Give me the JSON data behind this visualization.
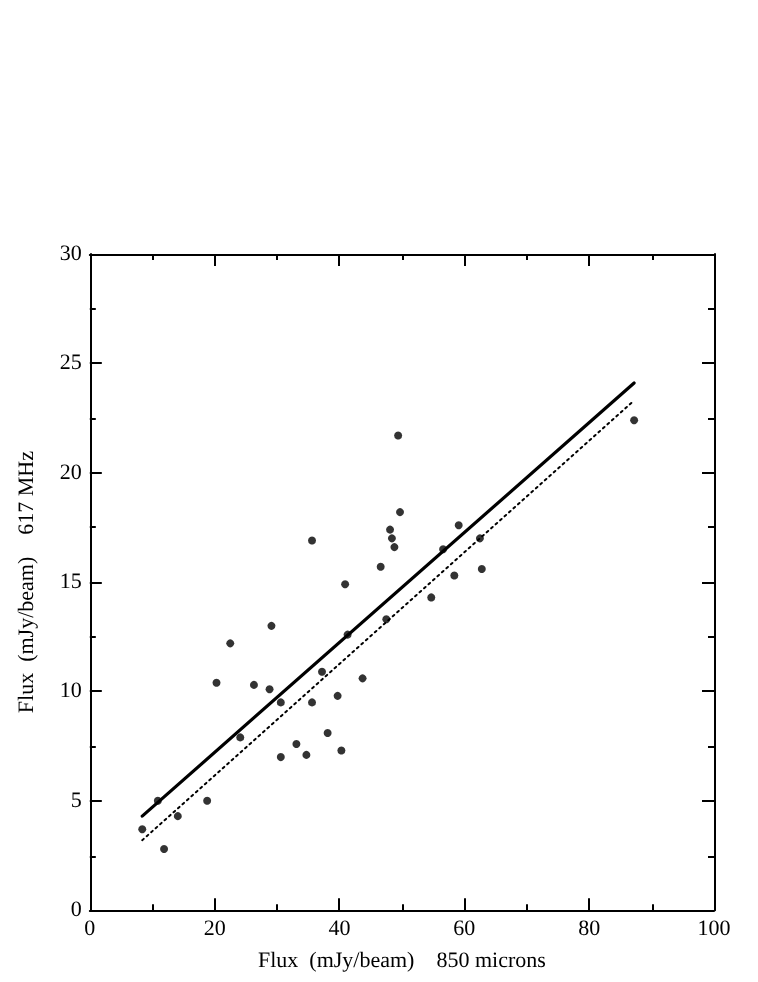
{
  "chart_data": {
    "type": "scatter",
    "xlabel": "Flux  (mJy/beam)    850 microns",
    "ylabel": "Flux  (mJy/beam)    617 MHz",
    "xlim": [
      0,
      100
    ],
    "xticks": [
      0,
      20,
      40,
      60,
      80,
      100
    ],
    "ylim": [
      0,
      30
    ],
    "yticks": [
      0,
      5,
      10,
      15,
      20,
      25,
      30
    ],
    "grid": false,
    "marker": "circle",
    "series": [
      {
        "color": "#000000",
        "x": [
          8.4,
          10.9,
          11.9,
          14.1,
          18.8,
          20.3,
          22.5,
          24.1,
          26.3,
          28.8,
          29.1,
          30.6,
          30.6,
          33.1,
          34.7,
          35.6,
          35.6,
          37.2,
          38.1,
          39.7,
          40.3,
          40.9,
          41.3,
          43.7,
          46.6,
          47.5,
          48.1,
          48.4,
          48.8,
          49.4,
          49.7,
          54.7,
          56.6,
          58.4,
          59.1,
          62.5,
          62.8,
          87.2
        ],
        "values": [
          3.7,
          5.0,
          2.8,
          4.3,
          5.0,
          10.4,
          12.2,
          7.9,
          10.3,
          10.1,
          13.0,
          7.0,
          9.5,
          7.6,
          7.1,
          16.9,
          9.5,
          10.9,
          8.1,
          9.8,
          7.3,
          14.9,
          12.6,
          10.6,
          15.7,
          13.3,
          17.4,
          17.0,
          16.6,
          21.7,
          18.2,
          14.3,
          16.5,
          15.3,
          17.6,
          17.0,
          15.6,
          22.4
        ]
      },
      {
        "type": "line",
        "color": "#000000",
        "line_style": "solid",
        "marker": "none",
        "x": [
          8.4,
          87.2
        ],
        "values": [
          4.3,
          24.1
        ]
      },
      {
        "type": "line",
        "color": "#000000",
        "line_style": "dotted",
        "marker": "none",
        "x": [
          8.4,
          87.2
        ],
        "values": [
          3.2,
          23.3
        ]
      }
    ]
  }
}
